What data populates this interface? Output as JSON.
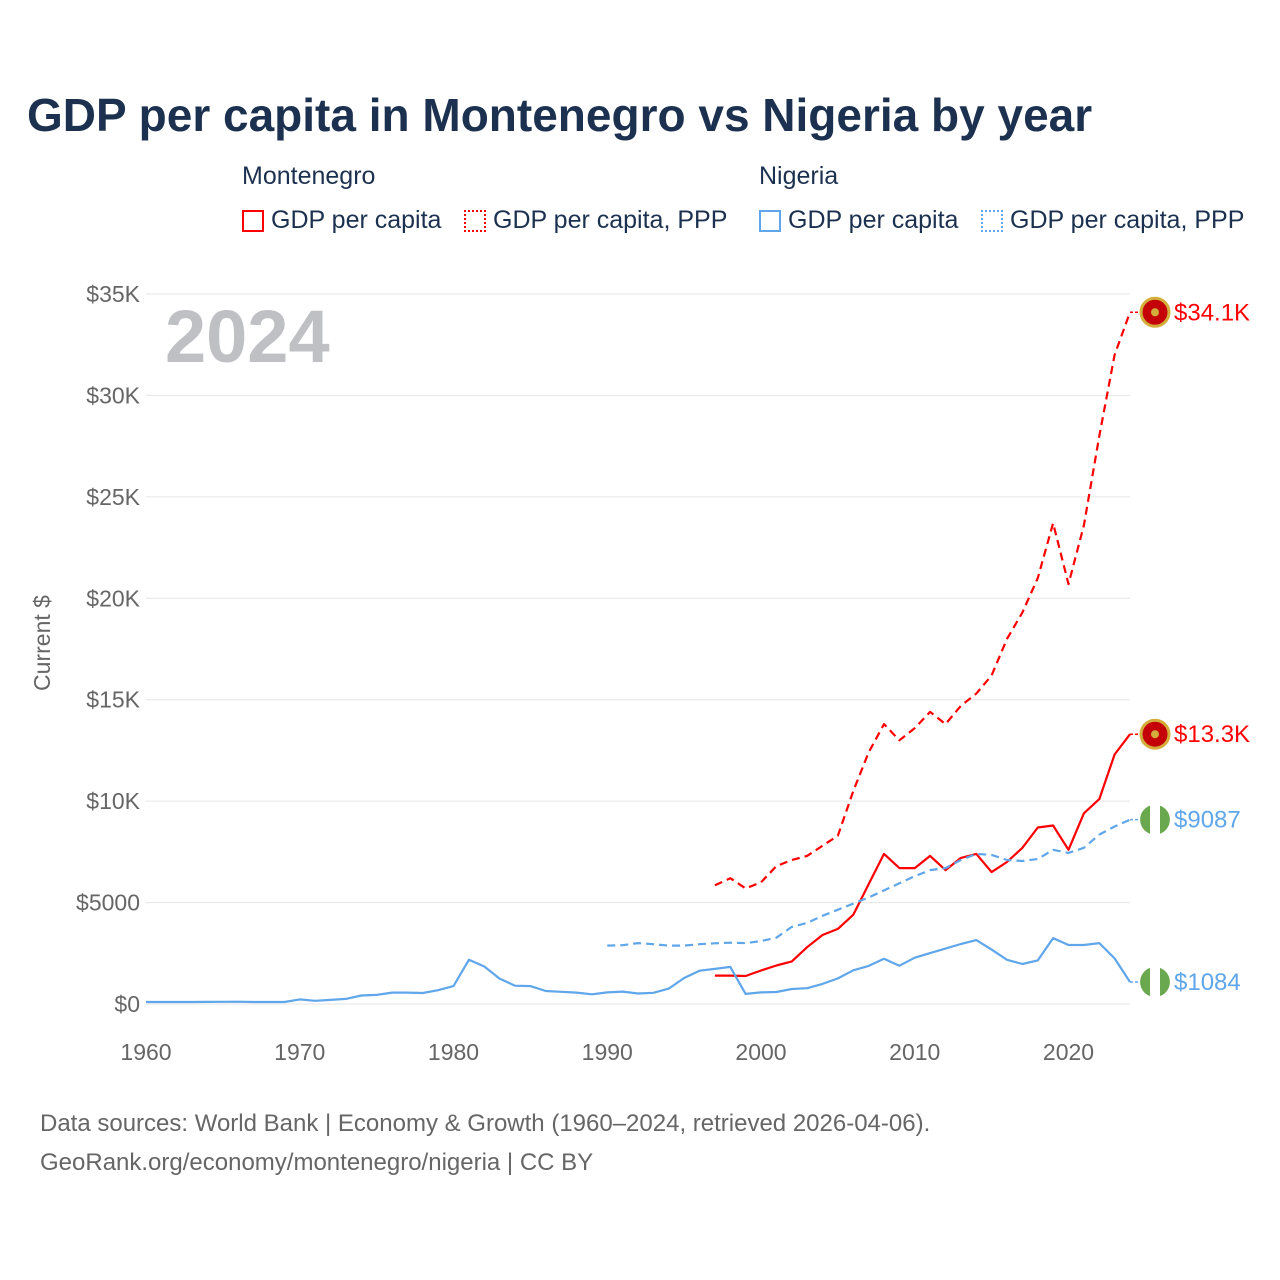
{
  "title": "GDP per capita in Montenegro vs Nigeria by year",
  "legend": {
    "groups": [
      {
        "name": "Montenegro",
        "items": [
          "GDP per capita",
          "GDP per capita, PPP"
        ],
        "color": "#ff0000"
      },
      {
        "name": "Nigeria",
        "items": [
          "GDP per capita",
          "GDP per capita, PPP"
        ],
        "color": "#5fa6ea"
      }
    ]
  },
  "year_watermark": "2024",
  "footer": {
    "line1": "Data sources: World Bank | Economy & Growth (1960–2024, retrieved 2026-04-06).",
    "line2": "GeoRank.org/economy/montenegro/nigeria | CC BY"
  },
  "chart_data": {
    "type": "line",
    "title": "GDP per capita in Montenegro vs Nigeria by year",
    "xlabel": "",
    "ylabel": "Current $",
    "xlim": [
      1960,
      2024
    ],
    "ylim": [
      0,
      35000
    ],
    "x_ticks": [
      "1960",
      "1970",
      "1980",
      "1990",
      "2000",
      "2010",
      "2020"
    ],
    "y_ticks": [
      {
        "value": 0,
        "label": "$0"
      },
      {
        "value": 5000,
        "label": "$5000"
      },
      {
        "value": 10000,
        "label": "$10K"
      },
      {
        "value": 15000,
        "label": "$15K"
      },
      {
        "value": 20000,
        "label": "$20K"
      },
      {
        "value": 25000,
        "label": "$25K"
      },
      {
        "value": 30000,
        "label": "$30K"
      },
      {
        "value": 35000,
        "label": "$35K"
      }
    ],
    "grid": true,
    "series": [
      {
        "name": "Montenegro GDP per capita",
        "color": "#ff0000",
        "dash": false,
        "start": 1997,
        "values": [
          1400,
          1400,
          1380,
          1650,
          1900,
          2100,
          2800,
          3400,
          3700,
          4400,
          5900,
          7400,
          6700,
          6700,
          7300,
          6600,
          7200,
          7400,
          6500,
          7000,
          7700,
          8700,
          8800,
          7600,
          9400,
          10100,
          12300,
          13300
        ],
        "end_label": "$13.3K",
        "flag": "montenegro"
      },
      {
        "name": "Montenegro GDP per capita, PPP",
        "color": "#ff0000",
        "dash": true,
        "start": 1997,
        "values": [
          5850,
          6200,
          5700,
          6000,
          6800,
          7100,
          7300,
          7800,
          8300,
          10500,
          12400,
          13800,
          13000,
          13600,
          14400,
          13800,
          14700,
          15300,
          16200,
          18000,
          19300,
          21000,
          23700,
          20700,
          23600,
          28000,
          32000,
          34100
        ],
        "end_label": "$34.1K",
        "flag": "montenegro"
      },
      {
        "name": "Nigeria GDP per capita",
        "color": "#5fa6ea",
        "dash": false,
        "start": 1960,
        "values": [
          100,
          100,
          100,
          100,
          105,
          110,
          115,
          100,
          100,
          100,
          225,
          160,
          200,
          250,
          420,
          450,
          560,
          560,
          540,
          680,
          880,
          2180,
          1850,
          1250,
          900,
          880,
          640,
          600,
          560,
          480,
          570,
          610,
          520,
          550,
          760,
          1280,
          1640,
          1730,
          1830,
          500,
          570,
          590,
          740,
          780,
          990,
          1260,
          1660,
          1880,
          2230,
          1890,
          2280,
          2510,
          2730,
          2960,
          3150,
          2680,
          2180,
          1970,
          2150,
          3250,
          2910,
          2910,
          3000,
          2250,
          1084
        ],
        "end_label": "$1084",
        "flag": "nigeria"
      },
      {
        "name": "Nigeria GDP per capita, PPP",
        "color": "#5fa6ea",
        "dash": true,
        "start": 1990,
        "values": [
          2880,
          2900,
          3000,
          2950,
          2880,
          2880,
          2950,
          2990,
          3020,
          3000,
          3100,
          3270,
          3800,
          4000,
          4350,
          4650,
          4950,
          5250,
          5600,
          5950,
          6300,
          6600,
          6700,
          7100,
          7400,
          7350,
          7100,
          7050,
          7150,
          7600,
          7450,
          7700,
          8350,
          8750,
          9087
        ],
        "end_label": "$9087",
        "flag": "nigeria"
      }
    ]
  }
}
